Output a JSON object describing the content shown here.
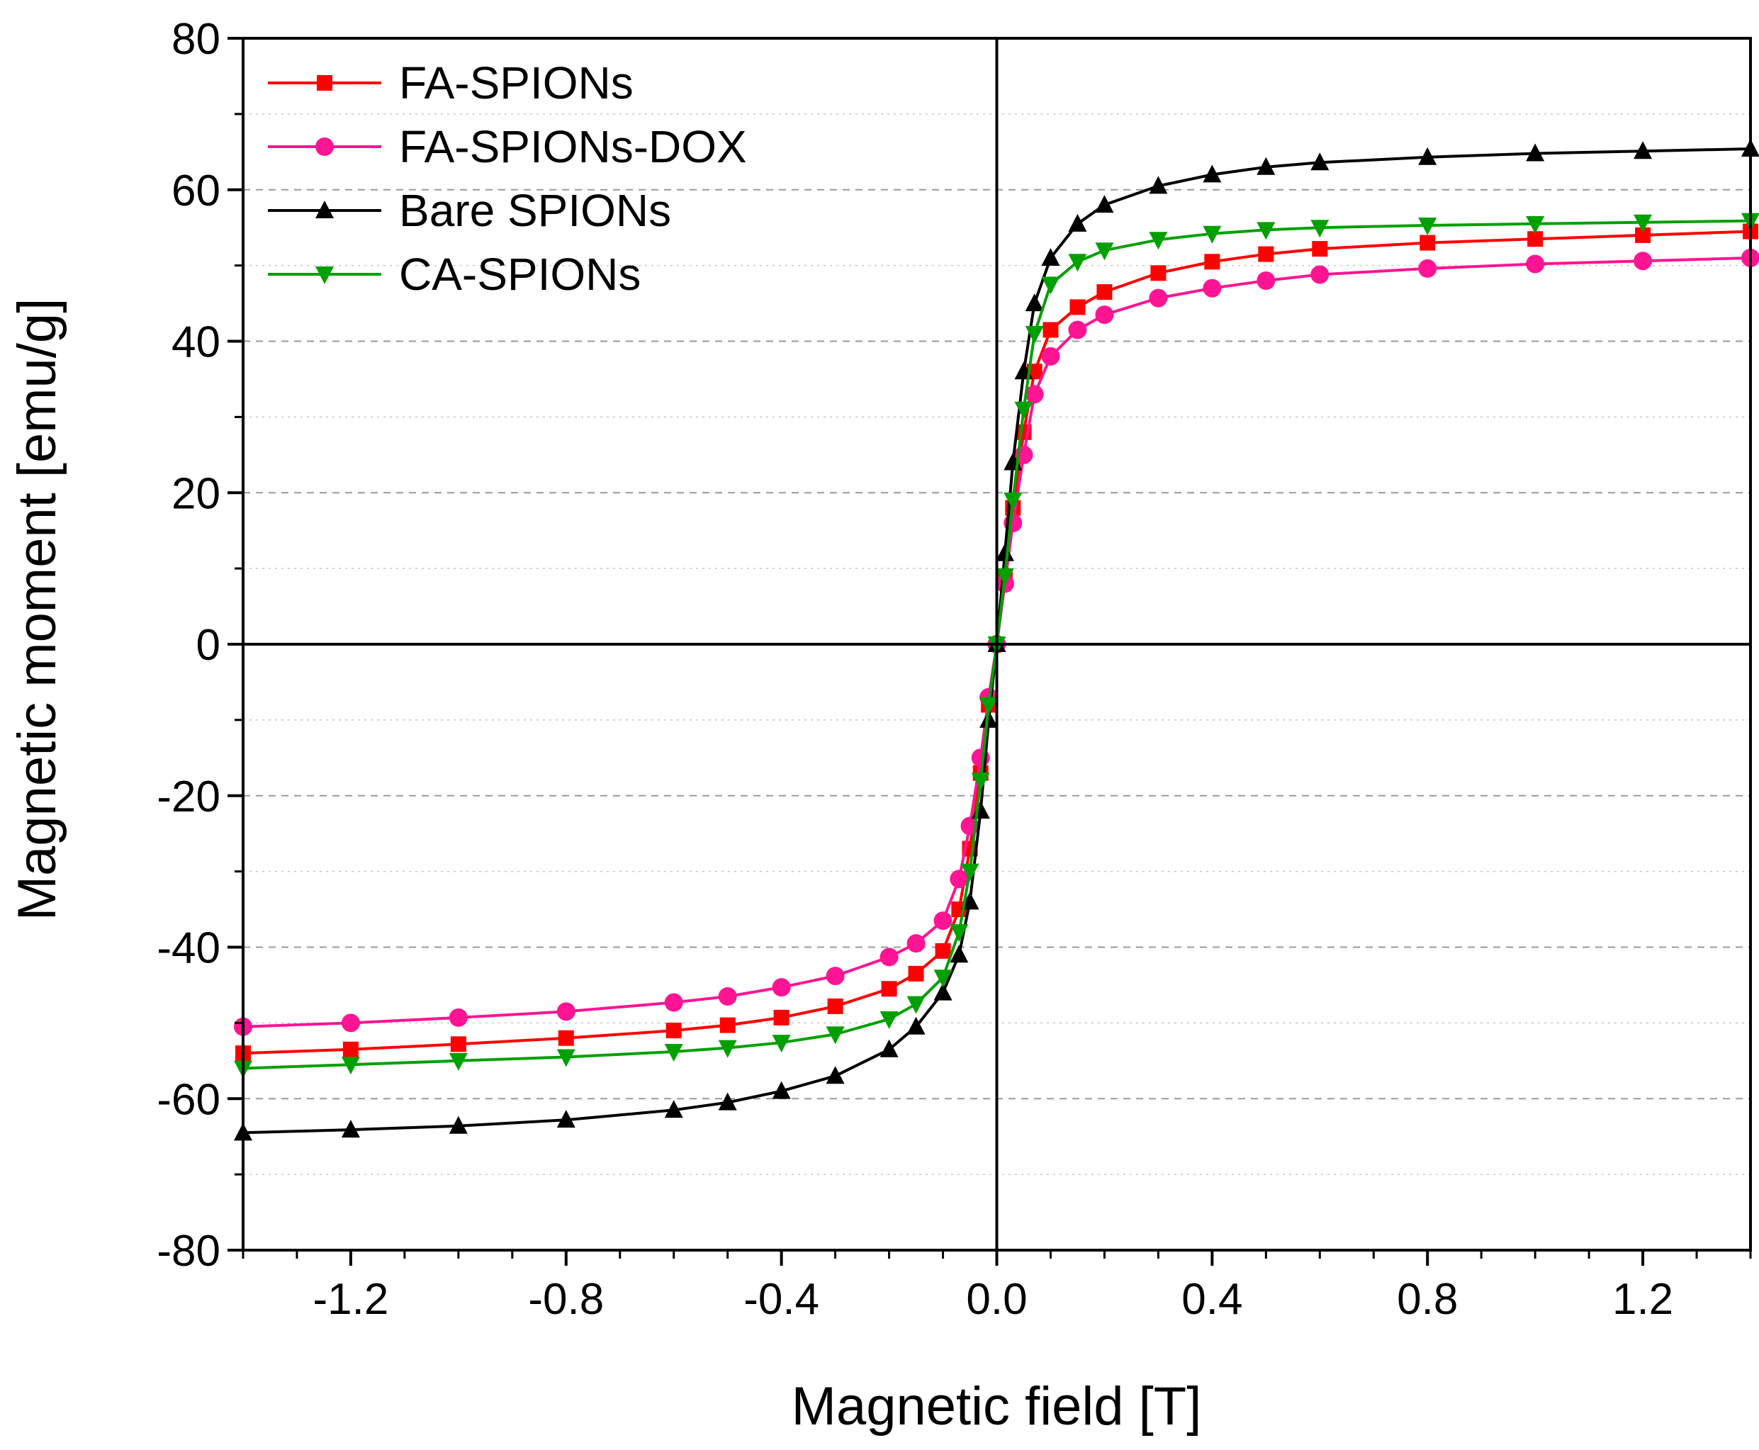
{
  "chart_data": {
    "type": "line",
    "xlabel": "Magnetic field [T]",
    "ylabel": "Magnetic moment [emu/g]",
    "xlim": [
      -1.4,
      1.4
    ],
    "ylim": [
      -80,
      80
    ],
    "x_ticks": [
      -1.2,
      -0.8,
      -0.4,
      0.0,
      0.4,
      0.8,
      1.2
    ],
    "x_tick_labels": [
      "-1.2",
      "-0.8",
      "-0.4",
      "0.0",
      "0.4",
      "0.8",
      "1.2"
    ],
    "y_ticks": [
      -80,
      -60,
      -40,
      -20,
      0,
      20,
      40,
      60,
      80
    ],
    "y_tick_labels": [
      "-80",
      "-60",
      "-40",
      "-20",
      "0",
      "20",
      "40",
      "60",
      "80"
    ],
    "grid": "horizontal-dashed",
    "legend_position": "top-left",
    "series": [
      {
        "name": "FA-SPIONs",
        "color": "#ff0000",
        "marker": "square",
        "x": [
          -1.4,
          -1.2,
          -1.0,
          -0.8,
          -0.6,
          -0.5,
          -0.4,
          -0.3,
          -0.2,
          -0.15,
          -0.1,
          -0.07,
          -0.05,
          -0.03,
          -0.015,
          0.0,
          0.015,
          0.03,
          0.05,
          0.07,
          0.1,
          0.15,
          0.2,
          0.3,
          0.4,
          0.5,
          0.6,
          0.8,
          1.0,
          1.2,
          1.4
        ],
        "y": [
          -54,
          -53.5,
          -52.8,
          -52,
          -51,
          -50.3,
          -49.3,
          -47.8,
          -45.5,
          -43.5,
          -40.5,
          -35,
          -27,
          -17,
          -8,
          0,
          9,
          18,
          28,
          36,
          41.5,
          44.5,
          46.5,
          49,
          50.5,
          51.5,
          52.2,
          53,
          53.5,
          54,
          54.5
        ]
      },
      {
        "name": "FA-SPIONs-DOX",
        "color": "#ff1493",
        "marker": "circle",
        "x": [
          -1.4,
          -1.2,
          -1.0,
          -0.8,
          -0.6,
          -0.5,
          -0.4,
          -0.3,
          -0.2,
          -0.15,
          -0.1,
          -0.07,
          -0.05,
          -0.03,
          -0.015,
          0.0,
          0.015,
          0.03,
          0.05,
          0.07,
          0.1,
          0.15,
          0.2,
          0.3,
          0.4,
          0.5,
          0.6,
          0.8,
          1.0,
          1.2,
          1.4
        ],
        "y": [
          -50.5,
          -50,
          -49.3,
          -48.5,
          -47.3,
          -46.5,
          -45.3,
          -43.8,
          -41.3,
          -39.5,
          -36.5,
          -31,
          -24,
          -15,
          -7,
          0,
          8,
          16,
          25,
          33,
          38,
          41.5,
          43.5,
          45.7,
          47,
          48,
          48.8,
          49.6,
          50.2,
          50.6,
          51
        ]
      },
      {
        "name": "Bare SPIONs",
        "color": "#000000",
        "marker": "triangle-up",
        "x": [
          -1.4,
          -1.2,
          -1.0,
          -0.8,
          -0.6,
          -0.5,
          -0.4,
          -0.3,
          -0.2,
          -0.15,
          -0.1,
          -0.07,
          -0.05,
          -0.03,
          -0.015,
          0.0,
          0.015,
          0.03,
          0.05,
          0.07,
          0.1,
          0.15,
          0.2,
          0.3,
          0.4,
          0.5,
          0.6,
          0.8,
          1.0,
          1.2,
          1.4
        ],
        "y": [
          -64.5,
          -64.1,
          -63.6,
          -62.8,
          -61.5,
          -60.5,
          -59,
          -57,
          -53.5,
          -50.5,
          -46,
          -41,
          -34,
          -22,
          -10,
          0,
          12,
          24,
          36,
          45,
          51,
          55.5,
          58,
          60.5,
          62,
          63,
          63.6,
          64.3,
          64.8,
          65.1,
          65.4
        ]
      },
      {
        "name": "CA-SPIONs",
        "color": "#00a000",
        "marker": "triangle-down",
        "x": [
          -1.4,
          -1.2,
          -1.0,
          -0.8,
          -0.6,
          -0.5,
          -0.4,
          -0.3,
          -0.2,
          -0.15,
          -0.1,
          -0.07,
          -0.05,
          -0.03,
          -0.015,
          0.0,
          0.015,
          0.03,
          0.05,
          0.07,
          0.1,
          0.15,
          0.2,
          0.3,
          0.4,
          0.5,
          0.6,
          0.8,
          1.0,
          1.2,
          1.4
        ],
        "y": [
          -56,
          -55.5,
          -55,
          -54.5,
          -53.8,
          -53.3,
          -52.6,
          -51.5,
          -49.5,
          -47.5,
          -44,
          -38,
          -30,
          -18,
          -8,
          0,
          9,
          19,
          31,
          41,
          47.5,
          50.5,
          52,
          53.4,
          54.2,
          54.7,
          55,
          55.3,
          55.5,
          55.7,
          55.9
        ]
      }
    ]
  }
}
